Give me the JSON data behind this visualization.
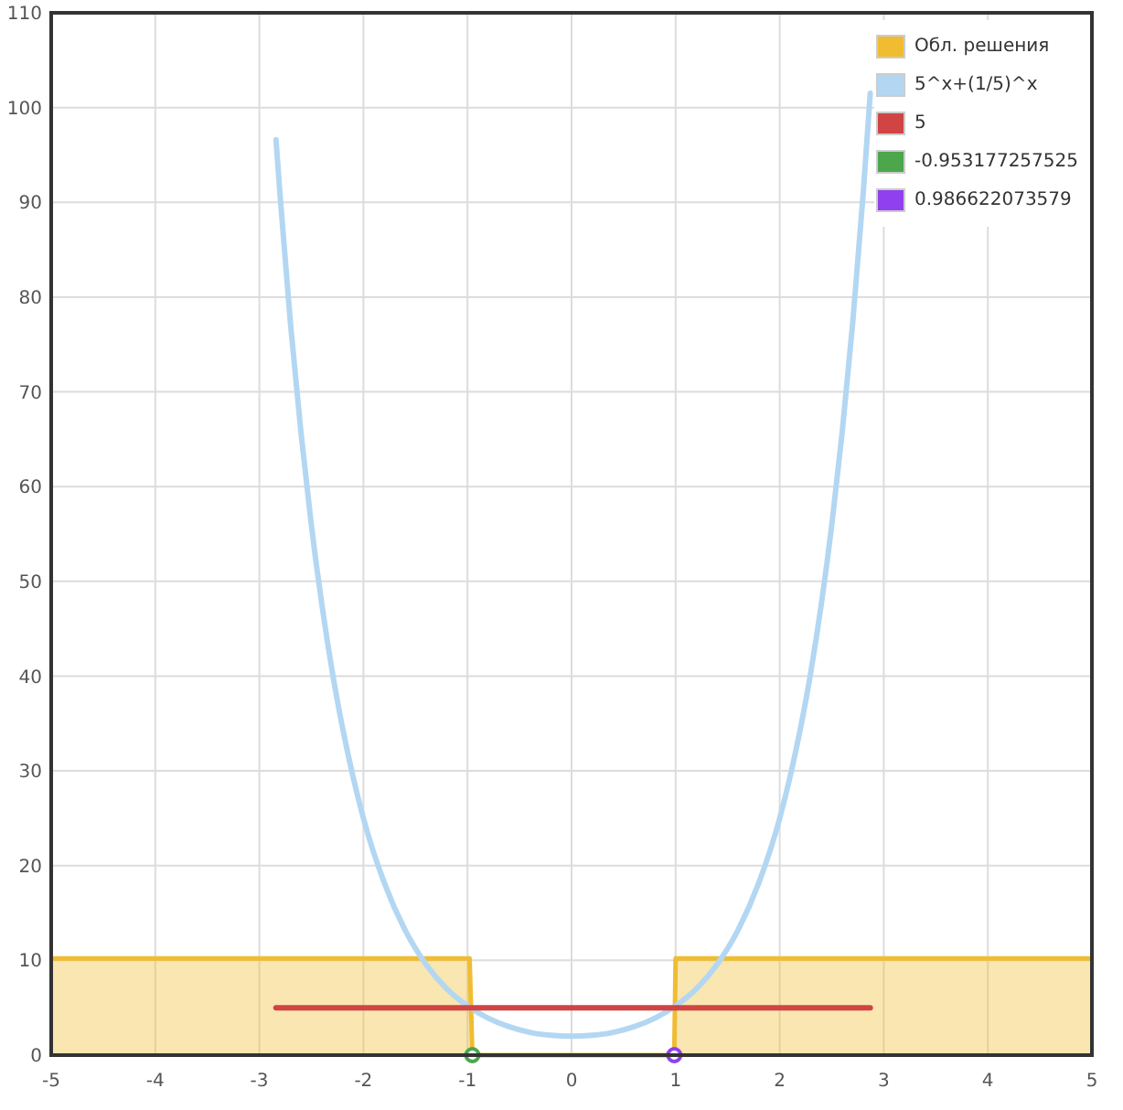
{
  "chart_data": {
    "type": "line",
    "xlim": [
      -5,
      5
    ],
    "xticks": [
      -5,
      -4,
      -3,
      -2,
      -1,
      0,
      1,
      2,
      3,
      4,
      5
    ],
    "ylim": [
      0,
      110
    ],
    "yticks": [
      0,
      10,
      20,
      30,
      40,
      50,
      60,
      70,
      80,
      90,
      100,
      110
    ],
    "grid": true,
    "legend": "top right",
    "series": [
      {
        "name": "Обл. решения",
        "type": "area",
        "color": "#f0bc32",
        "x": [
          -5,
          -0.98,
          -0.953,
          0.987,
          1.0,
          5
        ],
        "values": [
          10.2,
          10.2,
          0,
          0,
          10.2,
          10.2
        ]
      },
      {
        "name": "5^x+(1/5)^x",
        "color": "#b3d7f2",
        "x": [
          -2.84,
          -2.8,
          -2.7,
          -2.6,
          -2.5,
          -2.4,
          -2.3,
          -2.2,
          -2.1,
          -2,
          -1.8,
          -1.6,
          -1.4,
          -1.2,
          -1,
          -0.8,
          -0.6,
          -0.4,
          -0.2,
          0,
          0.2,
          0.4,
          0.6,
          0.8,
          1,
          1.2,
          1.4,
          1.6,
          1.8,
          2,
          2.1,
          2.2,
          2.3,
          2.4,
          2.5,
          2.6,
          2.7,
          2.8,
          2.87
        ],
        "values": [
          96.6,
          90.6,
          77.1,
          65.7,
          55.9,
          47.6,
          40.5,
          34.5,
          29.4,
          25,
          18.2,
          13.2,
          9.6,
          7,
          5.2,
          3.9,
          3,
          2.4,
          2.1,
          2,
          2.1,
          2.4,
          3,
          3.9,
          5.2,
          7,
          9.6,
          13.2,
          18.2,
          25,
          29.4,
          34.5,
          40.5,
          47.6,
          55.9,
          65.7,
          77.1,
          90.6,
          101.5
        ]
      },
      {
        "name": "5",
        "color": "#d04444",
        "x": [
          -2.84,
          2.87
        ],
        "values": [
          5,
          5
        ]
      },
      {
        "name": "-0.953177257525",
        "type": "scatter",
        "color": "#4ca64c",
        "marker": "circle",
        "x": [
          -0.953
        ],
        "values": [
          0
        ]
      },
      {
        "name": "0.986622073579",
        "type": "scatter",
        "color": "#9040ee",
        "marker": "circle",
        "x": [
          0.987
        ],
        "values": [
          0
        ]
      }
    ]
  }
}
